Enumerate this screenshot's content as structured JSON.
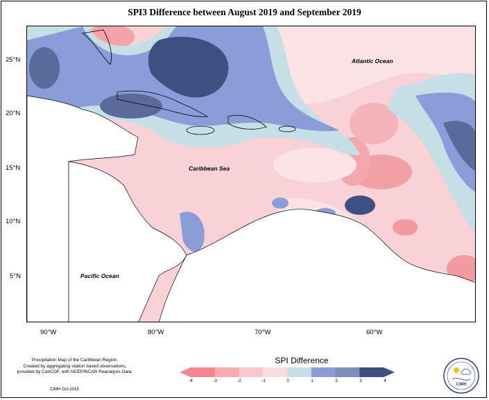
{
  "title": "SPI3 Difference between August 2019 and September 2019",
  "map": {
    "labels": {
      "atlantic": "Atlantic Ocean",
      "caribbean": "Caribbean Sea",
      "pacific": "Pacific Ocean"
    },
    "lat_ticks": [
      "25°N",
      "20°N",
      "15°N",
      "10°N",
      "5°N"
    ],
    "lon_ticks": [
      "90°W",
      "80°W",
      "70°W",
      "60°W"
    ]
  },
  "legend": {
    "title": "SPI Difference",
    "ticks": [
      "-4",
      "-3",
      "-2",
      "-1",
      "0",
      "1",
      "2",
      "3",
      "4"
    ],
    "colors": [
      "#f4868d",
      "#f7aab0",
      "#f8c8cc",
      "#fbdde0",
      "#fdf2f3",
      "#c6dfe6",
      "#8b9dd8",
      "#7c8fb7",
      "#3f4f82"
    ]
  },
  "credits": {
    "line1": "Precipitation Map of the Caribbean Region.",
    "line2": "Created by aggregating station based observations,",
    "line3": "provided by CariCOF, with NCEP/NCAR Reanalysis Data.",
    "date": "CIMH Oct-2019"
  },
  "logo": {
    "text": "CIMH"
  }
}
